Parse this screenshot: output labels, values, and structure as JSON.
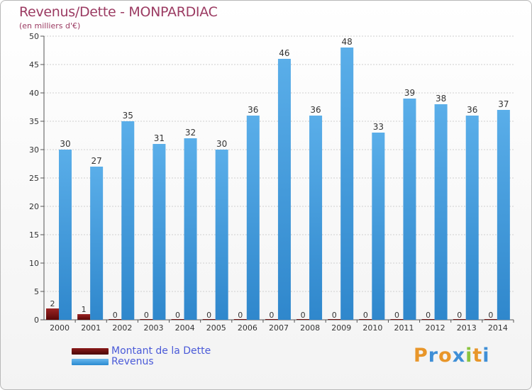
{
  "header": {
    "title": "Revenus/Dette - MONPARDIAC",
    "subtitle": "(en milliers d'€)"
  },
  "colors": {
    "debt": "#6b0d0d",
    "revenue": "#4aa3e3",
    "axis_text": "#333333",
    "grid": "#cfcfcf"
  },
  "chart_data": {
    "type": "bar",
    "title": "Revenus/Dette - MONPARDIAC",
    "subtitle": "(en milliers d'€)",
    "categories": [
      "2000",
      "2001",
      "2002",
      "2003",
      "2004",
      "2005",
      "2006",
      "2007",
      "2008",
      "2009",
      "2010",
      "2011",
      "2012",
      "2013",
      "2014"
    ],
    "series": [
      {
        "name": "Montant de la Dette",
        "values": [
          2,
          1,
          0,
          0,
          0,
          0,
          0,
          0,
          0,
          0,
          0,
          0,
          0,
          0,
          0
        ]
      },
      {
        "name": "Revenus",
        "values": [
          30,
          27,
          35,
          31,
          32,
          30,
          36,
          46,
          36,
          48,
          33,
          39,
          38,
          36,
          37
        ]
      }
    ],
    "ylim": [
      0,
      50
    ],
    "yticks": [
      0,
      5,
      10,
      15,
      20,
      25,
      30,
      35,
      40,
      45,
      50
    ],
    "grid": true,
    "legend_position": "bottom-left"
  },
  "legend": {
    "items": [
      {
        "label": "Montant de la Dette"
      },
      {
        "label": "Revenus"
      }
    ]
  },
  "logo": {
    "letters": [
      "P",
      "r",
      "o",
      "x",
      "i",
      "t",
      "i"
    ],
    "colors": [
      "#e8962a",
      "#3f8fd6",
      "#e8962a",
      "#3f8fd6",
      "#8ac43f",
      "#e8962a",
      "#3f8fd6"
    ]
  }
}
